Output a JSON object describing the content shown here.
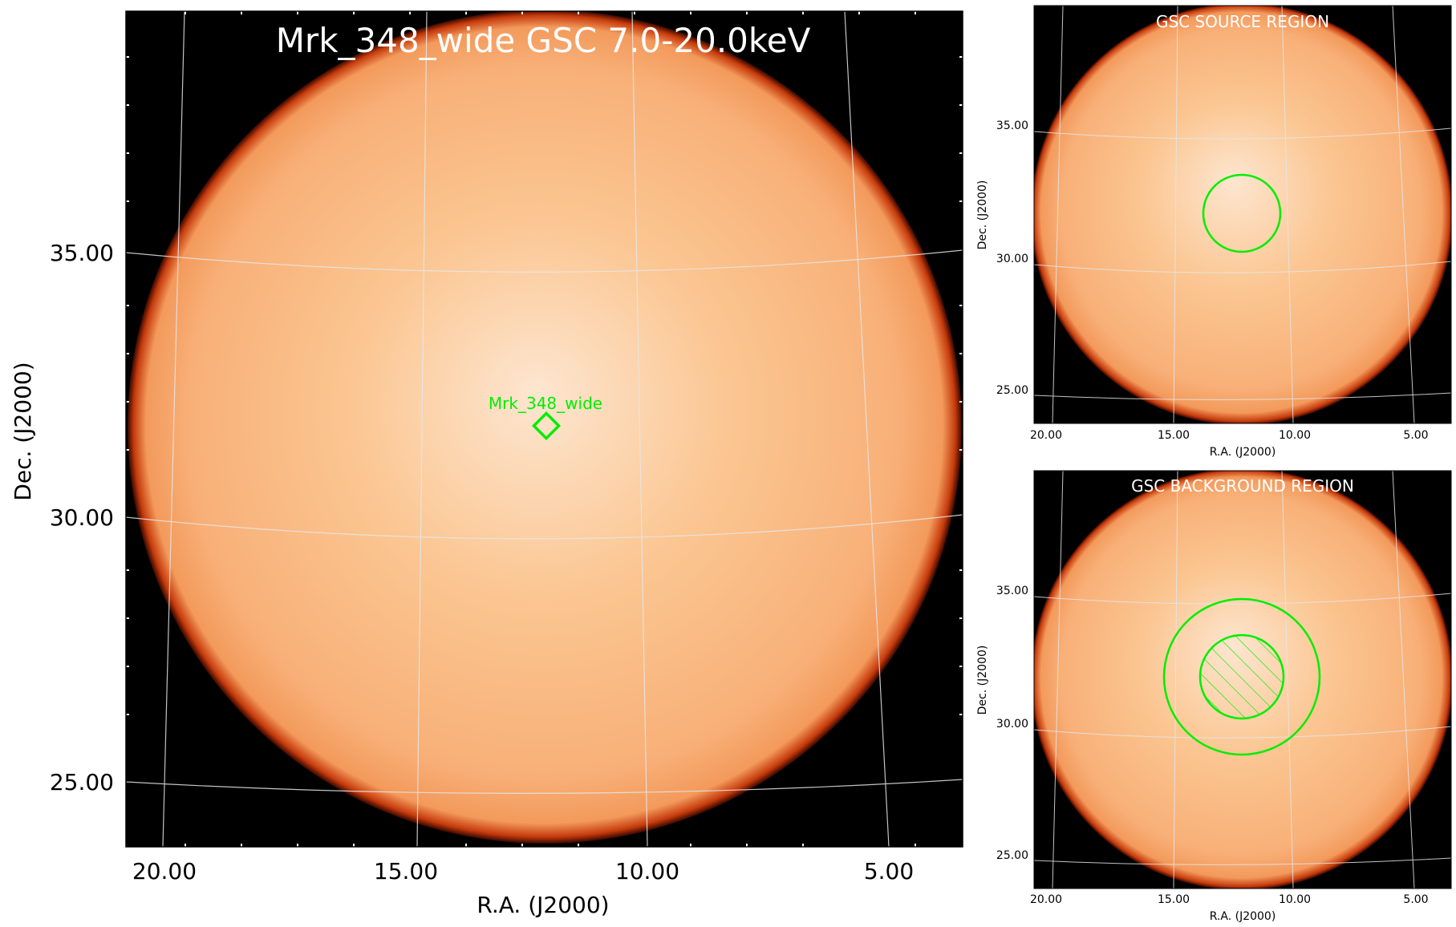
{
  "main": {
    "title": "Mrk_348_wide GSC 7.0-20.0keV",
    "source_label": "Mrk_348_wide",
    "xlabel": "R.A. (J2000)",
    "ylabel": "Dec. (J2000)",
    "xticks": [
      "20.00",
      "15.00",
      "10.00",
      "5.00"
    ],
    "yticks": [
      "35.00",
      "30.00",
      "25.00"
    ]
  },
  "source_panel": {
    "title": "GSC SOURCE REGION",
    "xlabel": "R.A. (J2000)",
    "ylabel": "Dec. (J2000)",
    "xticks": [
      "20.00",
      "15.00",
      "10.00",
      "5.00"
    ],
    "yticks": [
      "35.00",
      "30.00",
      "25.00"
    ]
  },
  "background_panel": {
    "title": "GSC BACKGROUND REGION",
    "xlabel": "R.A. (J2000)",
    "ylabel": "Dec. (J2000)",
    "xticks": [
      "20.00",
      "15.00",
      "10.00",
      "5.00"
    ],
    "yticks": [
      "35.00",
      "30.00",
      "25.00"
    ]
  },
  "colors": {
    "disk_center": "#fde4cc",
    "disk_mid": "#fac08a",
    "disk_edge": "#f6a66a",
    "rim": "#c8380a",
    "sky_background": "#000000",
    "region_marker": "#00ee00",
    "grid": "#d8d8d8",
    "title_text": "#ffffff"
  }
}
